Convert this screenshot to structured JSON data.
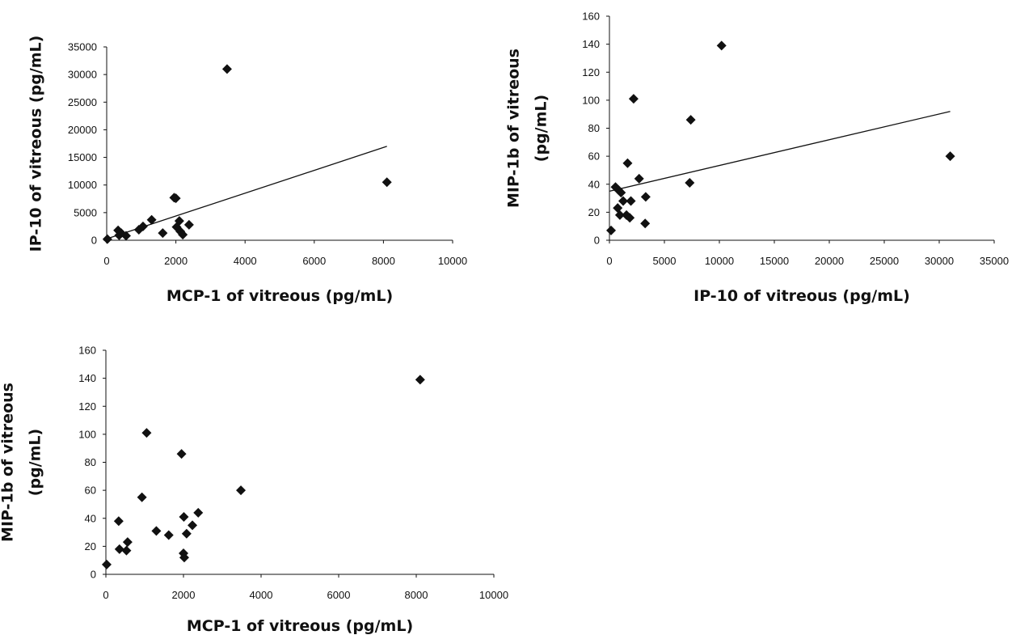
{
  "chart_data": [
    {
      "type": "scatter",
      "id": "chart-ip10-vs-mcp1",
      "title": "",
      "xlabel": "MCP-1 of vitreous (pg/mL)",
      "ylabel": [
        "IP-10 of vitreous (pg/mL)"
      ],
      "xlim": [
        0,
        10000
      ],
      "ylim": [
        0,
        35000
      ],
      "x_ticks": [
        0,
        2000,
        4000,
        6000,
        8000,
        10000
      ],
      "y_ticks": [
        0,
        5000,
        10000,
        15000,
        20000,
        25000,
        30000,
        35000
      ],
      "grid": false,
      "legend": "none",
      "marker": "diamond",
      "marker_color": "#111111",
      "trendline": {
        "type": "linear",
        "x": [
          0,
          8100
        ],
        "y": [
          250,
          17000
        ]
      },
      "series": [
        {
          "x": [
            20,
            330,
            360,
            420,
            560,
            930,
            1050,
            1300,
            1620,
            1950,
            2000,
            2020,
            2100,
            2130,
            2200,
            2380,
            3480,
            8100
          ],
          "y": [
            200,
            1800,
            900,
            1300,
            800,
            1900,
            2500,
            3700,
            1300,
            7700,
            7600,
            2400,
            3500,
            1600,
            1000,
            2800,
            31000,
            10500
          ]
        }
      ]
    },
    {
      "type": "scatter",
      "id": "chart-mip1b-vs-ip10",
      "title": "",
      "xlabel": "IP-10 of vitreous (pg/mL)",
      "ylabel": [
        "MIP-1b of vitreous",
        "(pg/mL)"
      ],
      "xlim": [
        0,
        35000
      ],
      "ylim": [
        0,
        160
      ],
      "x_ticks": [
        0,
        5000,
        10000,
        15000,
        20000,
        25000,
        30000,
        35000
      ],
      "y_ticks": [
        0,
        20,
        40,
        60,
        80,
        100,
        120,
        140,
        160
      ],
      "grid": false,
      "legend": "none",
      "marker": "diamond",
      "marker_color": "#111111",
      "trendline": {
        "type": "linear",
        "x": [
          0,
          31000
        ],
        "y": [
          35,
          92
        ]
      },
      "series": [
        {
          "x": [
            150,
            550,
            750,
            800,
            950,
            1050,
            1250,
            1550,
            1650,
            1850,
            1950,
            2200,
            2700,
            3250,
            3300,
            7300,
            7400,
            10200,
            31000
          ],
          "y": [
            7,
            38,
            23,
            36,
            18,
            34,
            28,
            18,
            55,
            16,
            28,
            101,
            44,
            12,
            31,
            41,
            86,
            139,
            60
          ]
        }
      ]
    },
    {
      "type": "scatter",
      "id": "chart-mip1b-vs-mcp1",
      "title": "",
      "xlabel": "MCP-1 of vitreous (pg/mL)",
      "ylabel": [
        "MIP-1b of vitreous",
        "(pg/mL)"
      ],
      "xlim": [
        0,
        10000
      ],
      "ylim": [
        0,
        160
      ],
      "x_ticks": [
        0,
        2000,
        4000,
        6000,
        8000,
        10000
      ],
      "y_ticks": [
        0,
        20,
        40,
        60,
        80,
        100,
        120,
        140,
        160
      ],
      "grid": false,
      "legend": "none",
      "marker": "diamond",
      "marker_color": "#111111",
      "trendline": null,
      "series": [
        {
          "x": [
            20,
            330,
            350,
            530,
            560,
            930,
            1050,
            1300,
            1620,
            1950,
            2000,
            2010,
            2020,
            2080,
            2230,
            2380,
            3480,
            8100
          ],
          "y": [
            7,
            38,
            18,
            17,
            23,
            55,
            101,
            31,
            28,
            86,
            15,
            41,
            12,
            29,
            35,
            44,
            60,
            139
          ]
        }
      ]
    }
  ]
}
